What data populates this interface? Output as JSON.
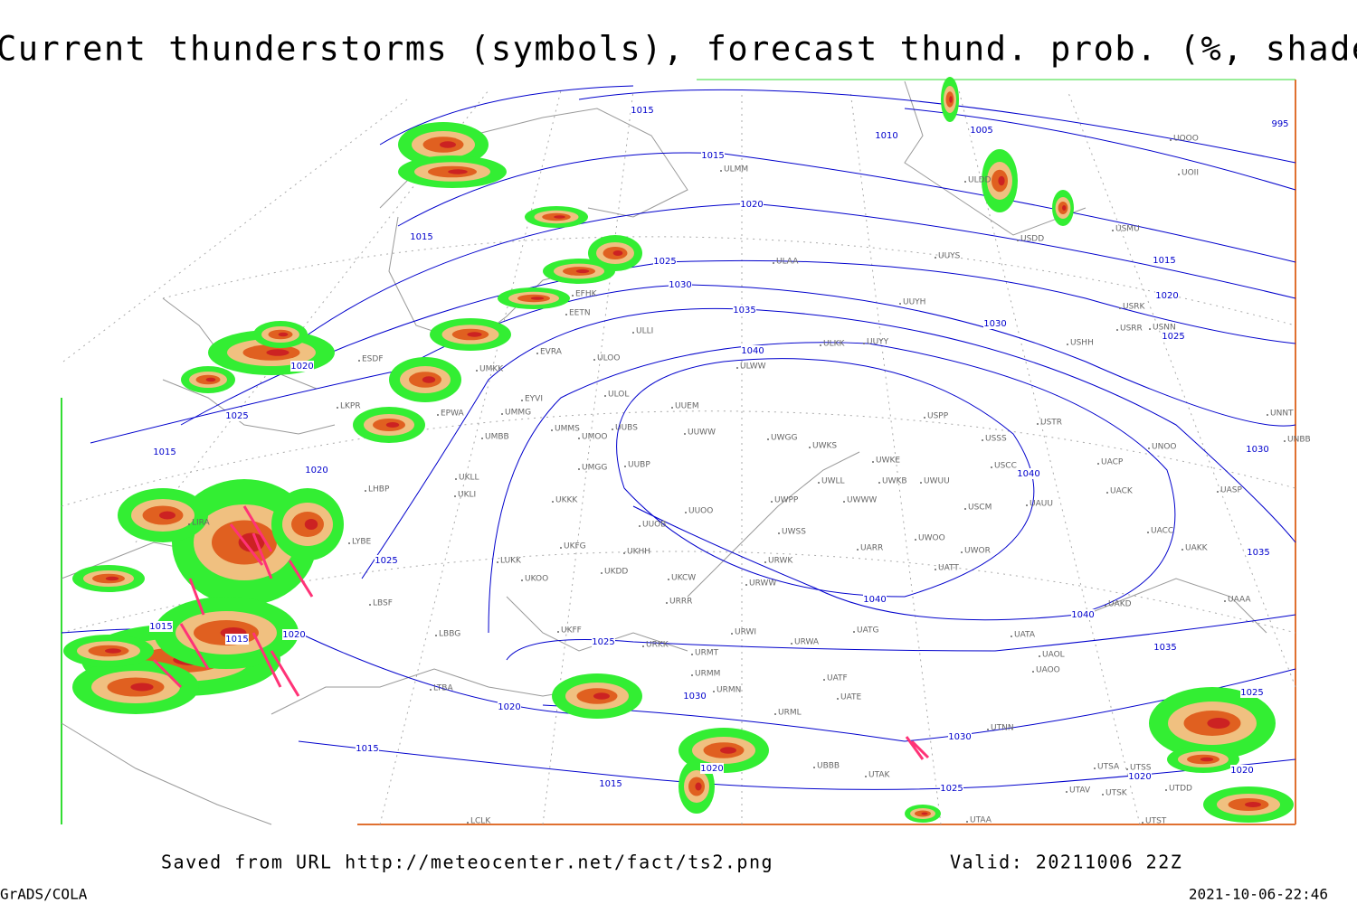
{
  "header": {
    "title": "Current thunderstorms (symbols), forecast thund. prob. (%, shaded)"
  },
  "map": {
    "isobar_labels": [
      1015,
      1010,
      1005,
      995,
      1015,
      1020,
      1015,
      1025,
      1015,
      1030,
      1020,
      1035,
      1030,
      1025,
      1040,
      1020,
      1025,
      1015,
      1020,
      1030,
      1040,
      1025,
      1035,
      1040,
      1040,
      1015,
      1015,
      1020,
      1025,
      1035,
      1030,
      1020,
      1015,
      1030,
      1020,
      1015,
      1025,
      1025,
      1020,
      1020
    ],
    "stations": [
      "UOOO",
      "UOII",
      "ULDD",
      "USMU",
      "USDD",
      "ULMM",
      "ULAA",
      "UUYS",
      "UUYH",
      "USRK",
      "USNN",
      "USRR",
      "USHH",
      "EFHK",
      "EETN",
      "ULLI",
      "EVRA",
      "ULOO",
      "ULWW",
      "ULKK",
      "UUYY",
      "ESDF",
      "UMKK",
      "EYVI",
      "ULOL",
      "UUEM",
      "UMMG",
      "EPWA",
      "LKPR",
      "UMMS",
      "UMOO",
      "UUBS",
      "UUWW",
      "UWGG",
      "UWKS",
      "UMBB",
      "USPP",
      "USTR",
      "USSS",
      "UNNT",
      "UNBB",
      "UNOO",
      "UMGG",
      "UUBP",
      "UWKE",
      "USCC",
      "UACP",
      "UKLL",
      "UKLI",
      "UWLL",
      "UWKB",
      "UWUU",
      "UACK",
      "UASP",
      "LHBP",
      "UKKK",
      "UWPP",
      "UWWW",
      "USCM",
      "UAUU",
      "UUOO",
      "LIRA",
      "UUOB",
      "UWSS",
      "UACC",
      "LYBE",
      "UKFG",
      "UKHH",
      "UARR",
      "UWOO",
      "UWOR",
      "UAKK",
      "LUKK",
      "UKDD",
      "URWK",
      "UATT",
      "LBSF",
      "UKCW",
      "URWW",
      "UKOO",
      "UAKD",
      "UAAA",
      "URRR",
      "UKFF",
      "LBBG",
      "URWI",
      "UATG",
      "UATA",
      "URKK",
      "URWA",
      "URMT",
      "UAOL",
      "URMM",
      "UATF",
      "UAOO",
      "LTBA",
      "URMN",
      "UATE",
      "URML",
      "UTNN",
      "UBBB",
      "UTAK",
      "UTSA",
      "UTSS",
      "UTAV",
      "UTSK",
      "UTDD",
      "UTAA",
      "UTST",
      "LCLK"
    ]
  },
  "footer": {
    "source": "Saved from URL http://meteocenter.net/fact/ts2.png",
    "valid": "Valid: 20211006 22Z",
    "software": "GrADS/COLA",
    "timestamp": "2021-10-06-22:46"
  }
}
